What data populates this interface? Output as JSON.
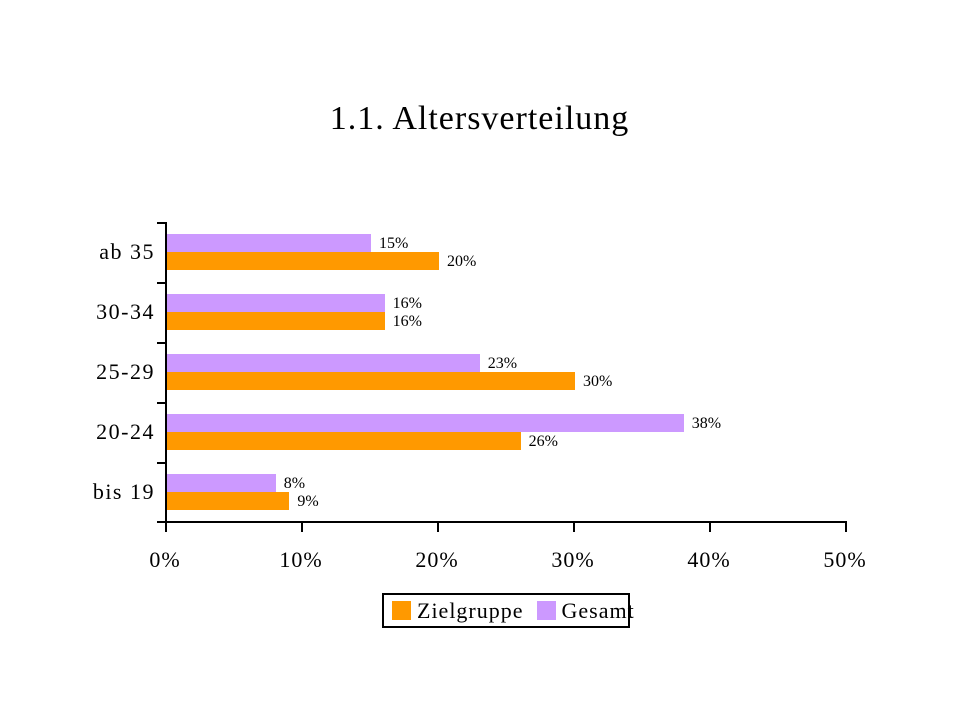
{
  "title": "1.1. Altersverteilung",
  "colors": {
    "series_zielgruppe": "#FF9900",
    "series_gesamt": "#CC99FF",
    "axis": "#000000",
    "background": "#FFFFFF",
    "text": "#000000"
  },
  "chart_data": {
    "type": "bar",
    "orientation": "horizontal",
    "title": "1.1. Altersverteilung",
    "categories": [
      "ab 35",
      "30-34",
      "25-29",
      "20-24",
      "bis 19"
    ],
    "series": [
      {
        "name": "Zielgruppe",
        "color": "#FF9900",
        "values": [
          20,
          16,
          30,
          26,
          9
        ],
        "labels": [
          "20%",
          "16%",
          "30%",
          "26%",
          "9%"
        ]
      },
      {
        "name": "Gesamt",
        "color": "#CC99FF",
        "values": [
          15,
          16,
          23,
          38,
          8
        ],
        "labels": [
          "15%",
          "16%",
          "23%",
          "38%",
          "8%"
        ]
      }
    ],
    "xlabel": "",
    "ylabel": "",
    "xlim": [
      0,
      50
    ],
    "x_tick_values": [
      0,
      10,
      20,
      30,
      40,
      50
    ],
    "x_tick_labels": [
      "0%",
      "10%",
      "20%",
      "30%",
      "40%",
      "50%"
    ],
    "grid": false,
    "data_labels_shown": true,
    "legend_position": "bottom",
    "legend_entries": [
      "Zielgruppe",
      "Gesamt"
    ]
  }
}
